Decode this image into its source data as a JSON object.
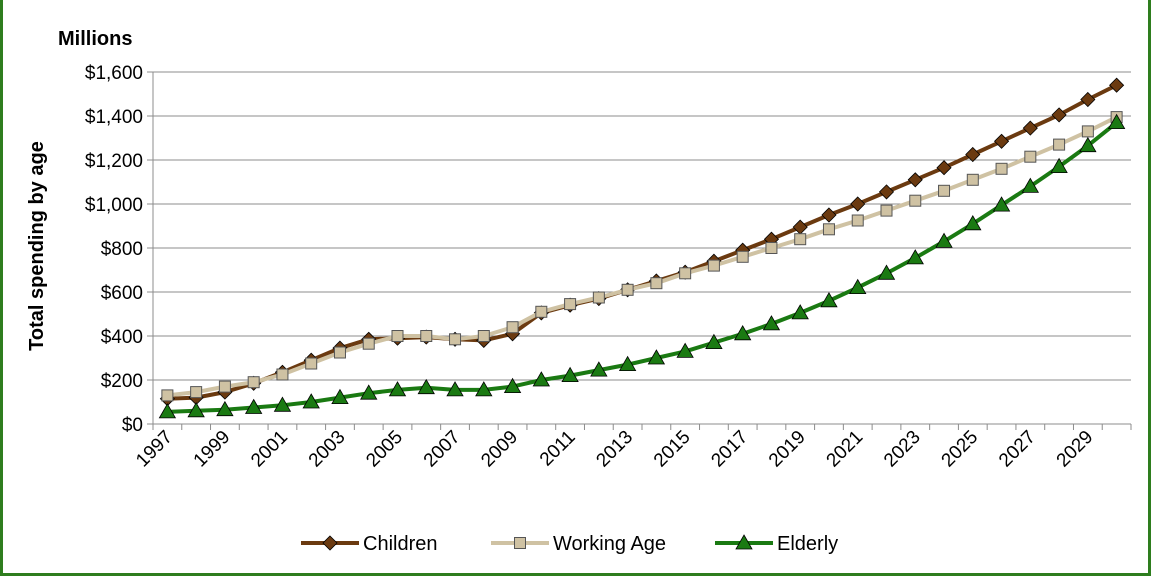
{
  "chart_data": {
    "type": "line",
    "unit_label": "Millions",
    "ylabel": "Total spending by age",
    "xlabel": "",
    "ylim": [
      0,
      1600
    ],
    "yticks": [
      "$0",
      "$200",
      "$400",
      "$600",
      "$800",
      "$1,000",
      "$1,200",
      "$1,400",
      "$1,600"
    ],
    "x": [
      1997,
      1998,
      1999,
      2000,
      2001,
      2002,
      2003,
      2004,
      2005,
      2006,
      2007,
      2008,
      2009,
      2010,
      2011,
      2012,
      2013,
      2014,
      2015,
      2016,
      2017,
      2018,
      2019,
      2020,
      2021,
      2022,
      2023,
      2024,
      2025,
      2026,
      2027,
      2028,
      2029,
      2030
    ],
    "xticks": [
      "1997",
      "1999",
      "2001",
      "2003",
      "2005",
      "2007",
      "2009",
      "2011",
      "2013",
      "2015",
      "2017",
      "2019",
      "2021",
      "2023",
      "2025",
      "2027",
      "2029"
    ],
    "grid": true,
    "legend_position": "bottom",
    "series": [
      {
        "name": "Children",
        "color": "#6b3a10",
        "fill": "#6b3a10",
        "marker": "diamond",
        "values": [
          115,
          120,
          145,
          185,
          235,
          290,
          345,
          385,
          390,
          395,
          385,
          380,
          410,
          505,
          540,
          570,
          610,
          650,
          690,
          740,
          790,
          840,
          895,
          950,
          1000,
          1055,
          1110,
          1165,
          1225,
          1285,
          1345,
          1405,
          1475,
          1540
        ]
      },
      {
        "name": "Working Age",
        "color": "#cfc2a3",
        "fill": "#cfc2a3",
        "marker": "square",
        "values": [
          130,
          145,
          170,
          190,
          225,
          275,
          325,
          365,
          400,
          400,
          385,
          400,
          440,
          510,
          545,
          575,
          610,
          640,
          685,
          720,
          760,
          800,
          840,
          885,
          925,
          970,
          1015,
          1060,
          1110,
          1160,
          1215,
          1270,
          1330,
          1395
        ]
      },
      {
        "name": "Elderly",
        "color": "#1a7a12",
        "fill": "#1a7a12",
        "marker": "triangle",
        "values": [
          55,
          60,
          65,
          75,
          85,
          100,
          120,
          140,
          155,
          165,
          155,
          155,
          170,
          200,
          220,
          245,
          270,
          300,
          330,
          370,
          410,
          455,
          505,
          560,
          620,
          685,
          755,
          830,
          910,
          995,
          1080,
          1170,
          1265,
          1370
        ]
      }
    ]
  }
}
